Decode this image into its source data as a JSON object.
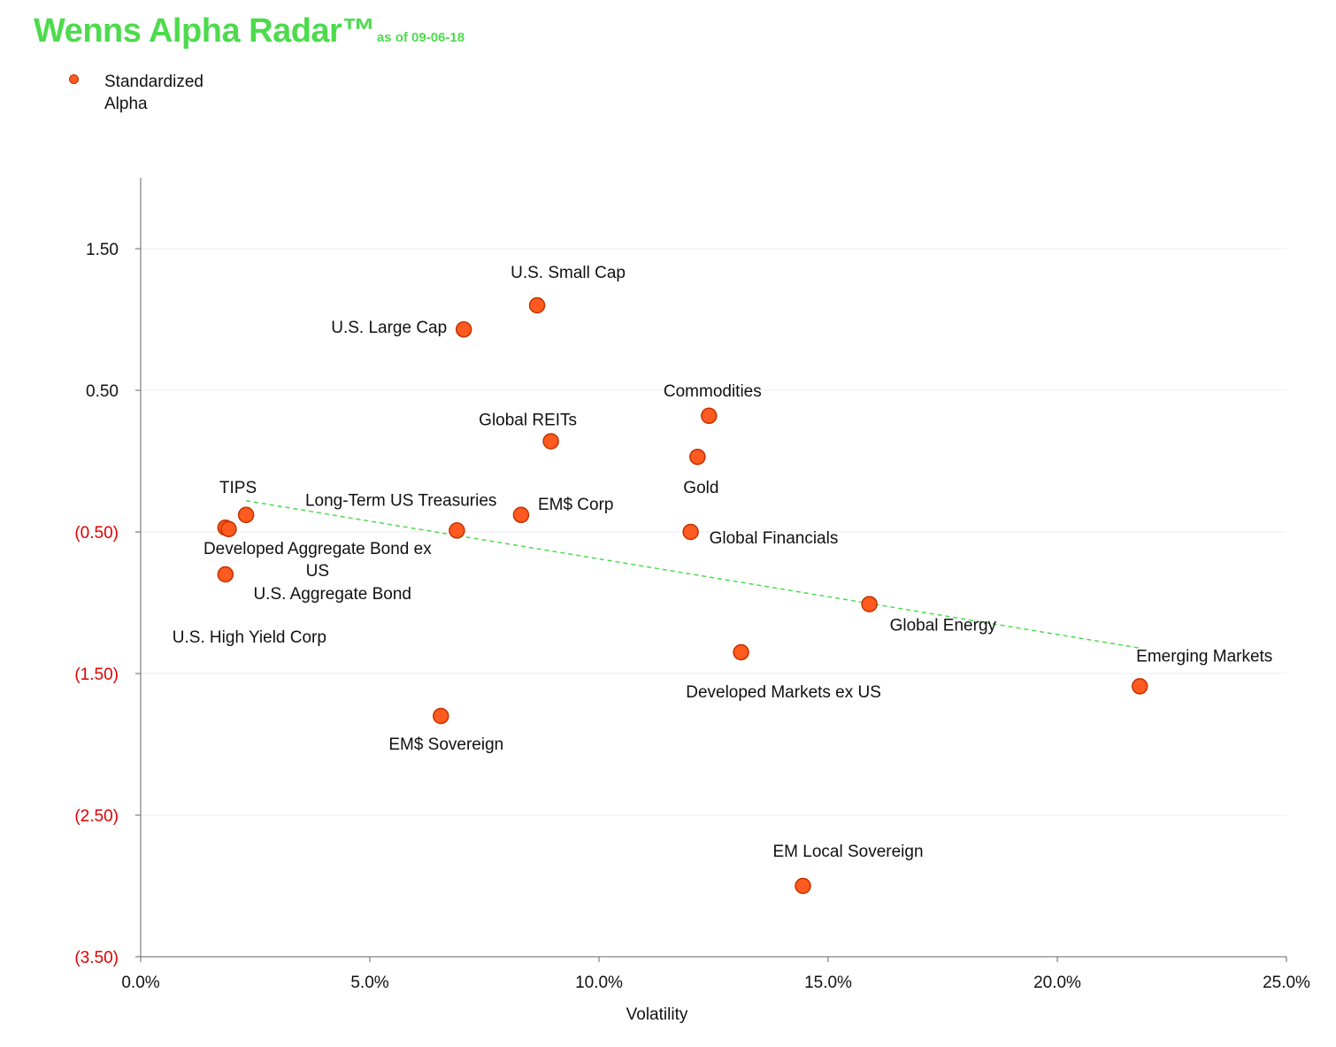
{
  "title": {
    "main": "Wenns Alpha Radar™",
    "date": "as of 09-06-18"
  },
  "legend": {
    "label": "Standardized Alpha"
  },
  "colors": {
    "title": "#4ddb4d",
    "point_fill": "#ff5a1f",
    "point_stroke": "#c23200",
    "trendline": "#4ddb4d",
    "negative_tick": "#e00000",
    "grid": "#eeeeee"
  },
  "chart_data": {
    "type": "scatter",
    "title": "Wenns Alpha Radar™",
    "xlabel": "Volatility",
    "ylabel": "",
    "xlim": [
      0,
      25
    ],
    "ylim": [
      -3.5,
      2.0
    ],
    "x_ticks": [
      {
        "value": 0,
        "label": "0.0%"
      },
      {
        "value": 5,
        "label": "5.0%"
      },
      {
        "value": 10,
        "label": "10.0%"
      },
      {
        "value": 15,
        "label": "15.0%"
      },
      {
        "value": 20,
        "label": "20.0%"
      },
      {
        "value": 25,
        "label": "25.0%"
      }
    ],
    "y_ticks": [
      {
        "value": 1.5,
        "label": "1.50"
      },
      {
        "value": 0.5,
        "label": "0.50"
      },
      {
        "value": -0.5,
        "label": "(0.50)"
      },
      {
        "value": -1.5,
        "label": "(1.50)"
      },
      {
        "value": -2.5,
        "label": "(2.50)"
      },
      {
        "value": -3.5,
        "label": "(3.50)"
      }
    ],
    "series": [
      {
        "name": "Standardized Alpha",
        "points": [
          {
            "label": "U.S. Small Cap",
            "x": 8.65,
            "y": 1.1,
            "label_pos": "above"
          },
          {
            "label": "U.S. Large Cap",
            "x": 7.05,
            "y": 0.93,
            "label_pos": "left"
          },
          {
            "label": "Commodities",
            "x": 12.4,
            "y": 0.32,
            "label_pos": "above"
          },
          {
            "label": "Global REITs",
            "x": 8.95,
            "y": 0.14,
            "label_pos": "above"
          },
          {
            "label": "Gold",
            "x": 12.15,
            "y": 0.03,
            "label_pos": "below"
          },
          {
            "label": "TIPS",
            "x": 2.3,
            "y": -0.38,
            "label_pos": "above-left"
          },
          {
            "label": "Developed Aggregate Bond ex US",
            "x": 1.85,
            "y": -0.47,
            "label_pos": "below-wrap"
          },
          {
            "label": "U.S. Aggregate Bond",
            "x": 1.92,
            "y": -0.48,
            "label_pos": "below-right"
          },
          {
            "label": "U.S. High Yield Corp",
            "x": 1.85,
            "y": -0.8,
            "label_pos": "below"
          },
          {
            "label": "Long-Term US Treasuries",
            "x": 6.9,
            "y": -0.49,
            "label_pos": "above-left"
          },
          {
            "label": "EM$ Corp",
            "x": 8.3,
            "y": -0.38,
            "label_pos": "right-above"
          },
          {
            "label": "Global Financials",
            "x": 12.0,
            "y": -0.5,
            "label_pos": "right-below"
          },
          {
            "label": "Global Energy",
            "x": 15.9,
            "y": -1.01,
            "label_pos": "right-below"
          },
          {
            "label": "Developed Markets ex US",
            "x": 13.1,
            "y": -1.35,
            "label_pos": "below"
          },
          {
            "label": "Emerging Markets",
            "x": 21.8,
            "y": -1.59,
            "label_pos": "above"
          },
          {
            "label": "EM$ Sovereign",
            "x": 6.55,
            "y": -1.8,
            "label_pos": "below"
          },
          {
            "label": "EM Local Sovereign",
            "x": 14.45,
            "y": -3.0,
            "label_pos": "above"
          }
        ]
      }
    ],
    "trendline": {
      "x": [
        2.3,
        21.8
      ],
      "y": [
        -0.28,
        -1.32
      ]
    },
    "grid": true,
    "legend_position": "top-left"
  }
}
